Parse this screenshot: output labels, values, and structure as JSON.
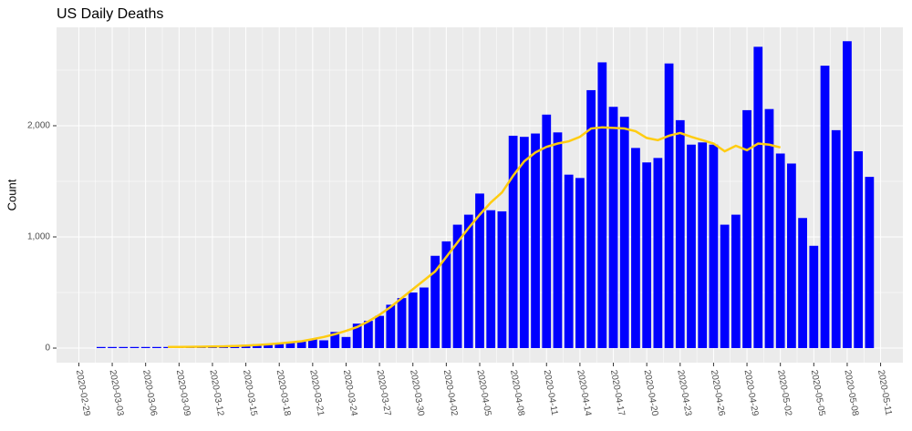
{
  "chart_data": {
    "type": "bar",
    "title": "US Daily Deaths",
    "y_label": "Count",
    "categories": [
      "2020-03-02",
      "2020-03-03",
      "2020-03-04",
      "2020-03-05",
      "2020-03-06",
      "2020-03-07",
      "2020-03-08",
      "2020-03-09",
      "2020-03-10",
      "2020-03-11",
      "2020-03-12",
      "2020-03-13",
      "2020-03-14",
      "2020-03-15",
      "2020-03-16",
      "2020-03-17",
      "2020-03-18",
      "2020-03-19",
      "2020-03-20",
      "2020-03-21",
      "2020-03-22",
      "2020-03-23",
      "2020-03-24",
      "2020-03-25",
      "2020-03-26",
      "2020-03-27",
      "2020-03-28",
      "2020-03-29",
      "2020-03-30",
      "2020-03-31",
      "2020-04-01",
      "2020-04-02",
      "2020-04-03",
      "2020-04-04",
      "2020-04-05",
      "2020-04-06",
      "2020-04-07",
      "2020-04-08",
      "2020-04-09",
      "2020-04-10",
      "2020-04-11",
      "2020-04-12",
      "2020-04-13",
      "2020-04-14",
      "2020-04-15",
      "2020-04-16",
      "2020-04-17",
      "2020-04-18",
      "2020-04-19",
      "2020-04-20",
      "2020-04-21",
      "2020-04-22",
      "2020-04-23",
      "2020-04-24",
      "2020-04-25",
      "2020-04-26",
      "2020-04-27",
      "2020-04-28",
      "2020-04-29",
      "2020-04-30",
      "2020-05-01",
      "2020-05-02",
      "2020-05-03",
      "2020-05-04",
      "2020-05-05",
      "2020-05-06",
      "2020-05-07",
      "2020-05-08",
      "2020-05-09",
      "2020-05-10"
    ],
    "values": [
      10,
      10,
      10,
      10,
      10,
      10,
      10,
      10,
      10,
      15,
      20,
      22,
      25,
      30,
      35,
      40,
      45,
      50,
      65,
      80,
      70,
      145,
      100,
      220,
      245,
      290,
      390,
      450,
      500,
      545,
      830,
      960,
      1110,
      1200,
      1390,
      1240,
      1230,
      1910,
      1900,
      1930,
      2100,
      1940,
      1560,
      1530,
      2320,
      2570,
      2170,
      2080,
      1800,
      1670,
      1710,
      2560,
      2050,
      1830,
      1850,
      1830,
      1110,
      1200,
      2140,
      2710,
      2150,
      1750,
      1660,
      1170,
      920,
      2540,
      1960,
      2760,
      1770,
      1540
    ],
    "color": "#0000ff",
    "line": {
      "color": "#ffcc11",
      "x": [
        "2020-03-08",
        "2020-03-09",
        "2020-03-10",
        "2020-03-11",
        "2020-03-12",
        "2020-03-13",
        "2020-03-14",
        "2020-03-15",
        "2020-03-16",
        "2020-03-17",
        "2020-03-18",
        "2020-03-19",
        "2020-03-20",
        "2020-03-21",
        "2020-03-22",
        "2020-03-23",
        "2020-03-24",
        "2020-03-25",
        "2020-03-26",
        "2020-03-27",
        "2020-03-28",
        "2020-03-29",
        "2020-03-30",
        "2020-03-31",
        "2020-04-01",
        "2020-04-02",
        "2020-04-03",
        "2020-04-04",
        "2020-04-05",
        "2020-04-06",
        "2020-04-07",
        "2020-04-08",
        "2020-04-09",
        "2020-04-10",
        "2020-04-11",
        "2020-04-12",
        "2020-04-13",
        "2020-04-14",
        "2020-04-15",
        "2020-04-16",
        "2020-04-17",
        "2020-04-18",
        "2020-04-19",
        "2020-04-20",
        "2020-04-21",
        "2020-04-22",
        "2020-04-23",
        "2020-04-24",
        "2020-04-25",
        "2020-04-26",
        "2020-04-27",
        "2020-04-28",
        "2020-04-29",
        "2020-04-30",
        "2020-05-01",
        "2020-05-02"
      ],
      "values": [
        10,
        10,
        11,
        12,
        14,
        16,
        19,
        23,
        28,
        34,
        42,
        51,
        62,
        80,
        100,
        125,
        155,
        190,
        240,
        300,
        370,
        450,
        530,
        610,
        690,
        820,
        950,
        1080,
        1200,
        1310,
        1400,
        1550,
        1680,
        1760,
        1810,
        1840,
        1860,
        1900,
        1975,
        1985,
        1980,
        1975,
        1950,
        1890,
        1870,
        1910,
        1935,
        1900,
        1870,
        1840,
        1770,
        1820,
        1780,
        1840,
        1830,
        1805
      ]
    },
    "xlim": [
      "2020-02-27",
      "2020-05-13"
    ],
    "xticks": [
      "2020-02-29",
      "2020-03-03",
      "2020-03-06",
      "2020-03-09",
      "2020-03-12",
      "2020-03-15",
      "2020-03-18",
      "2020-03-21",
      "2020-03-24",
      "2020-03-27",
      "2020-03-30",
      "2020-04-02",
      "2020-04-05",
      "2020-04-08",
      "2020-04-11",
      "2020-04-14",
      "2020-04-17",
      "2020-04-20",
      "2020-04-23",
      "2020-04-26",
      "2020-04-29",
      "2020-05-02",
      "2020-05-05",
      "2020-05-08",
      "2020-05-11"
    ],
    "ylim": [
      -131,
      2885
    ],
    "yticks": [
      0,
      {
        "value": 1000,
        "label": "1,000"
      },
      {
        "value": 2000,
        "label": "2,000"
      }
    ],
    "grid": true
  }
}
